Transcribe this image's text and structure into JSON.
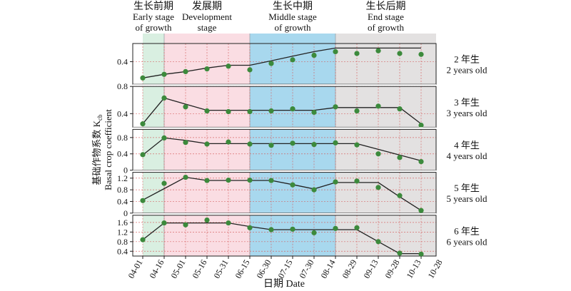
{
  "chart_data": {
    "type": "line",
    "xlabel": "日期 Date",
    "ylabel_cn": "基础作物系数 K",
    "ylabel_sub": "cb",
    "ylabel_en": "Basal crop coefficient",
    "x_ticks": [
      "04-01",
      "04-16",
      "05-01",
      "05-16",
      "05-31",
      "06-15",
      "06-30",
      "07-15",
      "07-30",
      "08-14",
      "08-29",
      "09-13",
      "09-28",
      "10-13",
      "10-28"
    ],
    "stages": [
      {
        "cn": "生长前期",
        "en1": "Early stage",
        "en2": "of growth",
        "start": 0,
        "end": 1,
        "color": "#d9efe1"
      },
      {
        "cn": "发展期",
        "en1": "Development",
        "en2": "stage",
        "start": 1,
        "end": 5,
        "color": "#fadde3"
      },
      {
        "cn": "生长中期",
        "en1": "Middle stage",
        "en2": "of growth",
        "start": 5,
        "end": 9,
        "color": "#a8d8ee"
      },
      {
        "cn": "生长后期",
        "en1": "End stage",
        "en2": "of growth",
        "start": 9,
        "end": 13.9,
        "color": "#e3e1e1"
      }
    ],
    "panels": [
      {
        "name_cn": "2 年生",
        "name_en": "2 years old",
        "ylim": [
          0.15,
          0.6
        ],
        "yticks": [
          0.4
        ],
        "line_x": [
          0,
          1,
          2,
          3,
          4,
          5,
          6,
          7,
          8,
          9,
          10,
          11,
          12,
          13
        ],
        "line_y": [
          0.22,
          0.26,
          0.29,
          0.33,
          0.36,
          0.36,
          0.41,
          0.46,
          0.51,
          0.55,
          0.55,
          0.55,
          0.55,
          0.55
        ],
        "points_x": [
          0,
          1,
          2,
          3,
          4,
          5,
          6,
          7,
          8,
          9,
          10,
          11,
          12,
          13
        ],
        "points_y": [
          0.22,
          0.26,
          0.29,
          0.32,
          0.35,
          0.31,
          0.38,
          0.42,
          0.47,
          0.51,
          0.49,
          0.52,
          0.49,
          0.48
        ]
      },
      {
        "name_cn": "3 年生",
        "name_en": "3 years old",
        "ylim": [
          0.2,
          0.8
        ],
        "yticks": [
          0.4,
          0.8
        ],
        "line_x": [
          0,
          1,
          2,
          3,
          4,
          5,
          6,
          7,
          8,
          9,
          10,
          11,
          12,
          13
        ],
        "line_y": [
          0.25,
          0.63,
          0.54,
          0.45,
          0.45,
          0.45,
          0.45,
          0.45,
          0.45,
          0.49,
          0.49,
          0.49,
          0.49,
          0.25
        ],
        "points_x": [
          0,
          1,
          2,
          3,
          4,
          5,
          6,
          7,
          8,
          9,
          10,
          11,
          12,
          13
        ],
        "points_y": [
          0.25,
          0.63,
          0.5,
          0.44,
          0.43,
          0.43,
          0.44,
          0.47,
          0.42,
          0.5,
          0.44,
          0.51,
          0.47,
          0.23
        ]
      },
      {
        "name_cn": "4 年生",
        "name_en": "4 years old",
        "ylim": [
          0,
          1.0
        ],
        "yticks": [
          0,
          0.4,
          0.8
        ],
        "line_x": [
          0,
          1,
          2,
          3,
          4,
          5,
          6,
          7,
          8,
          9,
          10,
          11,
          12,
          13
        ],
        "line_y": [
          0.37,
          0.79,
          0.73,
          0.65,
          0.65,
          0.65,
          0.65,
          0.65,
          0.65,
          0.65,
          0.65,
          0.51,
          0.37,
          0.23
        ],
        "points_x": [
          0,
          1,
          2,
          3,
          4,
          5,
          6,
          7,
          8,
          9,
          10,
          11,
          12,
          13
        ],
        "points_y": [
          0.38,
          0.79,
          0.68,
          0.64,
          0.69,
          0.64,
          0.61,
          0.66,
          0.63,
          0.67,
          0.62,
          0.4,
          0.31,
          0.21
        ]
      },
      {
        "name_cn": "5 年生",
        "name_en": "5 years old",
        "ylim": [
          0,
          1.4
        ],
        "yticks": [
          0,
          0.4,
          0.8,
          1.2
        ],
        "line_x": [
          0,
          1,
          2,
          3,
          4,
          5,
          6,
          7,
          8,
          9,
          10,
          11,
          12,
          13
        ],
        "line_y": [
          0.45,
          0.84,
          1.23,
          1.12,
          1.12,
          1.12,
          1.12,
          0.98,
          0.83,
          1.05,
          1.05,
          1.05,
          0.56,
          0.09
        ],
        "points_x": [
          0,
          1,
          2,
          3,
          4,
          5,
          6,
          7,
          8,
          9,
          10,
          11,
          12,
          13
        ],
        "points_y": [
          0.43,
          1.02,
          1.23,
          1.12,
          1.13,
          1.13,
          1.12,
          0.97,
          0.8,
          1.07,
          1.1,
          0.88,
          0.6,
          0.09
        ]
      },
      {
        "name_cn": "6 年生",
        "name_en": "6 years old",
        "ylim": [
          0.2,
          1.9
        ],
        "yticks": [
          0.4,
          0.8,
          1.2,
          1.6
        ],
        "line_x": [
          0,
          1,
          2,
          3,
          4,
          5,
          6,
          7,
          8,
          9,
          10,
          11,
          12,
          13
        ],
        "line_y": [
          0.88,
          1.58,
          1.58,
          1.58,
          1.58,
          1.43,
          1.3,
          1.3,
          1.3,
          1.3,
          1.3,
          0.8,
          0.3,
          0.3
        ],
        "points_x": [
          0,
          1,
          2,
          3,
          4,
          5,
          6,
          7,
          8,
          9,
          10,
          11,
          12,
          13
        ],
        "points_y": [
          0.88,
          1.58,
          1.5,
          1.7,
          1.58,
          1.38,
          1.3,
          1.32,
          1.17,
          1.35,
          1.38,
          0.8,
          0.32,
          0.28
        ]
      }
    ]
  }
}
